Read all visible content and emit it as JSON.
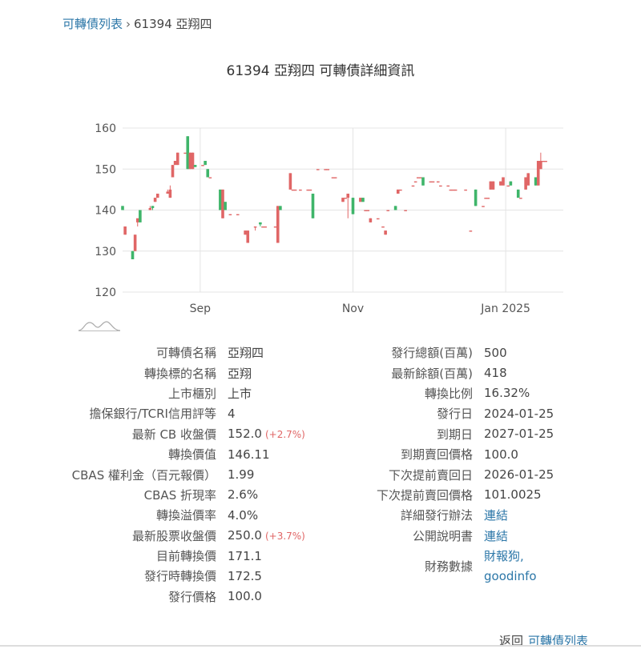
{
  "breadcrumb": {
    "root": "可轉債列表",
    "sep": "›",
    "current": "61394 亞翔四"
  },
  "page_title": "61394 亞翔四 可轉債詳細資訊",
  "colors": {
    "up": "#e06666",
    "down": "#3fb56a",
    "grid": "#e4e4e4",
    "axis": "#555555"
  },
  "chart_data": {
    "type": "candlestick",
    "ylim": [
      120,
      160
    ],
    "yticks": [
      120,
      130,
      140,
      150,
      160
    ],
    "xlim": [
      "2024-08-01",
      "2025-01-24"
    ],
    "xticks": [
      {
        "label": "Sep",
        "date": "2024-09-01"
      },
      {
        "label": "Nov",
        "date": "2024-11-01"
      },
      {
        "label": "Jan 2025",
        "date": "2025-01-01"
      }
    ],
    "candles": [
      {
        "date": "2024-08-01",
        "o": 141,
        "h": 141,
        "l": 140,
        "c": 140
      },
      {
        "date": "2024-08-02",
        "o": 134,
        "h": 136,
        "l": 134,
        "c": 136
      },
      {
        "date": "2024-08-05",
        "o": 130,
        "h": 130,
        "l": 128,
        "c": 128
      },
      {
        "date": "2024-08-06",
        "o": 130,
        "h": 134,
        "l": 130,
        "c": 134
      },
      {
        "date": "2024-08-07",
        "o": 137,
        "h": 138,
        "l": 136,
        "c": 138
      },
      {
        "date": "2024-08-08",
        "o": 140,
        "h": 140,
        "l": 137,
        "c": 137
      },
      {
        "date": "2024-08-12",
        "o": 140,
        "h": 141,
        "l": 140,
        "c": 140.5
      },
      {
        "date": "2024-08-13",
        "o": 141,
        "h": 141,
        "l": 140,
        "c": 140.5
      },
      {
        "date": "2024-08-14",
        "o": 142,
        "h": 143,
        "l": 142,
        "c": 143
      },
      {
        "date": "2024-08-15",
        "o": 143,
        "h": 144,
        "l": 143,
        "c": 144
      },
      {
        "date": "2024-08-19",
        "o": 144,
        "h": 145,
        "l": 144,
        "c": 144.5
      },
      {
        "date": "2024-08-20",
        "o": 143,
        "h": 146,
        "l": 143,
        "c": 145
      },
      {
        "date": "2024-08-21",
        "o": 148,
        "h": 151,
        "l": 148,
        "c": 151
      },
      {
        "date": "2024-08-22",
        "o": 151,
        "h": 152,
        "l": 151,
        "c": 152
      },
      {
        "date": "2024-08-23",
        "o": 151,
        "h": 154,
        "l": 151,
        "c": 154
      },
      {
        "date": "2024-08-26",
        "o": 154,
        "h": 154,
        "l": 154,
        "c": 154
      },
      {
        "date": "2024-08-27",
        "o": 158,
        "h": 158,
        "l": 150,
        "c": 150
      },
      {
        "date": "2024-08-28",
        "o": 150,
        "h": 154,
        "l": 150,
        "c": 154
      },
      {
        "date": "2024-08-29",
        "o": 150,
        "h": 154,
        "l": 150,
        "c": 154
      },
      {
        "date": "2024-08-30",
        "o": 151,
        "h": 151,
        "l": 150.5,
        "c": 150.5
      },
      {
        "date": "2024-09-02",
        "o": 151,
        "h": 151,
        "l": 151,
        "c": 151
      },
      {
        "date": "2024-09-03",
        "o": 152,
        "h": 152,
        "l": 151,
        "c": 151
      },
      {
        "date": "2024-09-04",
        "o": 150,
        "h": 150,
        "l": 148,
        "c": 148
      },
      {
        "date": "2024-09-05",
        "o": 148,
        "h": 148,
        "l": 148,
        "c": 148
      },
      {
        "date": "2024-09-09",
        "o": 145,
        "h": 145,
        "l": 140,
        "c": 140
      },
      {
        "date": "2024-09-10",
        "o": 138,
        "h": 145,
        "l": 138,
        "c": 145
      },
      {
        "date": "2024-09-11",
        "o": 142,
        "h": 142,
        "l": 140,
        "c": 140
      },
      {
        "date": "2024-09-13",
        "o": 139,
        "h": 139,
        "l": 139,
        "c": 139
      },
      {
        "date": "2024-09-16",
        "o": 139,
        "h": 139,
        "l": 139,
        "c": 139
      },
      {
        "date": "2024-09-19",
        "o": 134,
        "h": 135,
        "l": 134,
        "c": 135
      },
      {
        "date": "2024-09-20",
        "o": 132,
        "h": 135,
        "l": 132,
        "c": 135
      },
      {
        "date": "2024-09-23",
        "o": 136,
        "h": 136,
        "l": 135,
        "c": 136
      },
      {
        "date": "2024-09-25",
        "o": 137,
        "h": 137,
        "l": 136,
        "c": 136.5
      },
      {
        "date": "2024-09-26",
        "o": 136,
        "h": 136,
        "l": 136,
        "c": 136
      },
      {
        "date": "2024-09-27",
        "o": 136,
        "h": 136,
        "l": 136,
        "c": 136
      },
      {
        "date": "2024-10-01",
        "o": 136,
        "h": 136,
        "l": 136,
        "c": 136
      },
      {
        "date": "2024-10-02",
        "o": 132,
        "h": 141,
        "l": 132,
        "c": 141
      },
      {
        "date": "2024-10-03",
        "o": 141,
        "h": 141,
        "l": 140,
        "c": 140
      },
      {
        "date": "2024-10-07",
        "o": 145,
        "h": 149,
        "l": 145,
        "c": 149
      },
      {
        "date": "2024-10-08",
        "o": 145,
        "h": 145,
        "l": 145,
        "c": 145
      },
      {
        "date": "2024-10-09",
        "o": 145,
        "h": 145,
        "l": 145,
        "c": 145
      },
      {
        "date": "2024-10-11",
        "o": 145,
        "h": 145,
        "l": 145,
        "c": 145
      },
      {
        "date": "2024-10-14",
        "o": 145,
        "h": 145,
        "l": 145,
        "c": 145
      },
      {
        "date": "2024-10-15",
        "o": 145,
        "h": 145,
        "l": 145,
        "c": 145
      },
      {
        "date": "2024-10-16",
        "o": 144,
        "h": 144,
        "l": 138,
        "c": 138
      },
      {
        "date": "2024-10-18",
        "o": 150,
        "h": 150,
        "l": 150,
        "c": 150
      },
      {
        "date": "2024-10-21",
        "o": 150,
        "h": 150,
        "l": 150,
        "c": 150
      },
      {
        "date": "2024-10-22",
        "o": 150,
        "h": 150,
        "l": 150,
        "c": 150
      },
      {
        "date": "2024-10-24",
        "o": 148,
        "h": 148,
        "l": 148,
        "c": 148
      },
      {
        "date": "2024-10-25",
        "o": 148,
        "h": 148,
        "l": 148,
        "c": 148
      },
      {
        "date": "2024-10-28",
        "o": 142,
        "h": 143,
        "l": 142,
        "c": 143
      },
      {
        "date": "2024-10-29",
        "o": 143,
        "h": 143,
        "l": 143,
        "c": 143
      },
      {
        "date": "2024-10-30",
        "o": 143,
        "h": 144,
        "l": 138,
        "c": 144
      },
      {
        "date": "2024-11-01",
        "o": 143,
        "h": 143,
        "l": 139,
        "c": 139
      },
      {
        "date": "2024-11-04",
        "o": 142,
        "h": 143,
        "l": 142,
        "c": 143
      },
      {
        "date": "2024-11-05",
        "o": 143,
        "h": 143,
        "l": 142,
        "c": 142
      },
      {
        "date": "2024-11-06",
        "o": 140,
        "h": 140,
        "l": 140,
        "c": 140
      },
      {
        "date": "2024-11-07",
        "o": 140,
        "h": 140,
        "l": 140,
        "c": 140
      },
      {
        "date": "2024-11-08",
        "o": 137,
        "h": 138,
        "l": 137,
        "c": 138
      },
      {
        "date": "2024-11-11",
        "o": 138,
        "h": 138,
        "l": 138,
        "c": 138
      },
      {
        "date": "2024-11-13",
        "o": 136,
        "h": 136,
        "l": 136,
        "c": 136
      },
      {
        "date": "2024-11-14",
        "o": 134,
        "h": 135,
        "l": 134,
        "c": 135
      },
      {
        "date": "2024-11-15",
        "o": 140,
        "h": 140,
        "l": 140,
        "c": 140
      },
      {
        "date": "2024-11-18",
        "o": 141,
        "h": 141,
        "l": 140,
        "c": 140
      },
      {
        "date": "2024-11-19",
        "o": 144,
        "h": 145,
        "l": 144,
        "c": 145
      },
      {
        "date": "2024-11-20",
        "o": 145,
        "h": 145,
        "l": 145,
        "c": 145
      },
      {
        "date": "2024-11-22",
        "o": 140,
        "h": 140,
        "l": 140,
        "c": 140
      },
      {
        "date": "2024-11-25",
        "o": 146,
        "h": 146,
        "l": 146,
        "c": 146
      },
      {
        "date": "2024-11-26",
        "o": 147,
        "h": 147,
        "l": 147,
        "c": 147
      },
      {
        "date": "2024-11-27",
        "o": 148,
        "h": 148,
        "l": 148,
        "c": 148
      },
      {
        "date": "2024-11-28",
        "o": 148,
        "h": 148,
        "l": 148,
        "c": 148
      },
      {
        "date": "2024-11-29",
        "o": 148,
        "h": 148,
        "l": 146,
        "c": 146
      },
      {
        "date": "2024-12-02",
        "o": 147,
        "h": 147,
        "l": 147,
        "c": 147
      },
      {
        "date": "2024-12-03",
        "o": 147,
        "h": 147,
        "l": 147,
        "c": 147
      },
      {
        "date": "2024-12-05",
        "o": 147,
        "h": 147,
        "l": 147,
        "c": 147
      },
      {
        "date": "2024-12-06",
        "o": 146,
        "h": 146,
        "l": 146,
        "c": 146
      },
      {
        "date": "2024-12-09",
        "o": 146,
        "h": 146,
        "l": 146,
        "c": 146
      },
      {
        "date": "2024-12-10",
        "o": 145,
        "h": 145,
        "l": 145,
        "c": 145
      },
      {
        "date": "2024-12-11",
        "o": 145,
        "h": 145,
        "l": 145,
        "c": 145
      },
      {
        "date": "2024-12-12",
        "o": 145,
        "h": 145,
        "l": 145,
        "c": 145
      },
      {
        "date": "2024-12-16",
        "o": 145,
        "h": 145,
        "l": 145,
        "c": 145
      },
      {
        "date": "2024-12-18",
        "o": 135,
        "h": 135,
        "l": 135,
        "c": 135
      },
      {
        "date": "2024-12-20",
        "o": 145,
        "h": 145,
        "l": 141,
        "c": 141
      },
      {
        "date": "2024-12-23",
        "o": 141,
        "h": 141,
        "l": 141,
        "c": 141
      },
      {
        "date": "2024-12-24",
        "o": 143,
        "h": 143,
        "l": 143,
        "c": 143
      },
      {
        "date": "2024-12-25",
        "o": 143,
        "h": 143,
        "l": 143,
        "c": 143
      },
      {
        "date": "2024-12-26",
        "o": 145,
        "h": 147,
        "l": 145,
        "c": 147
      },
      {
        "date": "2024-12-27",
        "o": 145,
        "h": 147,
        "l": 145,
        "c": 147
      },
      {
        "date": "2024-12-30",
        "o": 146,
        "h": 147,
        "l": 146,
        "c": 147
      },
      {
        "date": "2024-12-31",
        "o": 146,
        "h": 148,
        "l": 146,
        "c": 148
      },
      {
        "date": "2025-01-02",
        "o": 146,
        "h": 146,
        "l": 146,
        "c": 146
      },
      {
        "date": "2025-01-03",
        "o": 147,
        "h": 147,
        "l": 146,
        "c": 146
      },
      {
        "date": "2025-01-06",
        "o": 145,
        "h": 145,
        "l": 143,
        "c": 143
      },
      {
        "date": "2025-01-07",
        "o": 143,
        "h": 143,
        "l": 143,
        "c": 143
      },
      {
        "date": "2025-01-09",
        "o": 145,
        "h": 148,
        "l": 145,
        "c": 148
      },
      {
        "date": "2025-01-10",
        "o": 146,
        "h": 149,
        "l": 146,
        "c": 149
      },
      {
        "date": "2025-01-13",
        "o": 148,
        "h": 148,
        "l": 146,
        "c": 146
      },
      {
        "date": "2025-01-14",
        "o": 146,
        "h": 152,
        "l": 146,
        "c": 152
      },
      {
        "date": "2025-01-15",
        "o": 150,
        "h": 154,
        "l": 150,
        "c": 152
      },
      {
        "date": "2025-01-16",
        "o": 152,
        "h": 152,
        "l": 152,
        "c": 152
      },
      {
        "date": "2025-01-17",
        "o": 152,
        "h": 152,
        "l": 152,
        "c": 152
      }
    ]
  },
  "bond_info": {
    "left": [
      {
        "label": "可轉債名稱",
        "value": "亞翔四"
      },
      {
        "label": "轉換標的名稱",
        "value": "亞翔"
      },
      {
        "label": "上市櫃別",
        "value": "上市"
      },
      {
        "label": "擔保銀行/TCRI信用評等",
        "value": "4"
      },
      {
        "label": "最新 CB 收盤價",
        "value": "152.0",
        "change": "(+2.7%)"
      },
      {
        "label": "轉換價值",
        "value": "146.11"
      },
      {
        "label": "CBAS 權利金（百元報價）",
        "value": "1.99"
      },
      {
        "label": "CBAS 折現率",
        "value": "2.6%"
      },
      {
        "label": "轉換溢價率",
        "value": "4.0%"
      },
      {
        "label": "最新股票收盤價",
        "value": "250.0",
        "change": "(+3.7%)"
      },
      {
        "label": "目前轉換價",
        "value": "171.1"
      },
      {
        "label": "發行時轉換價",
        "value": "172.5"
      },
      {
        "label": "發行價格",
        "value": "100.0"
      }
    ],
    "right": [
      {
        "label": "發行總額(百萬)",
        "value": "500"
      },
      {
        "label": "最新餘額(百萬)",
        "value": "418"
      },
      {
        "label": "轉換比例",
        "value": "16.32%"
      },
      {
        "label": "發行日",
        "value": "2024-01-25"
      },
      {
        "label": "到期日",
        "value": "2027-01-25"
      },
      {
        "label": "到期賣回價格",
        "value": "100.0"
      },
      {
        "label": "下次提前賣回日",
        "value": "2026-01-25"
      },
      {
        "label": "下次提前賣回價格",
        "value": "101.0025"
      },
      {
        "label": "詳細發行辦法",
        "link": "連結"
      },
      {
        "label": "公開說明書",
        "link": "連結"
      },
      {
        "label": "財務數據",
        "links": [
          "財報狗,",
          "goodinfo"
        ]
      }
    ]
  },
  "footer": {
    "back_text": "返回",
    "back_link": "可轉債列表"
  }
}
